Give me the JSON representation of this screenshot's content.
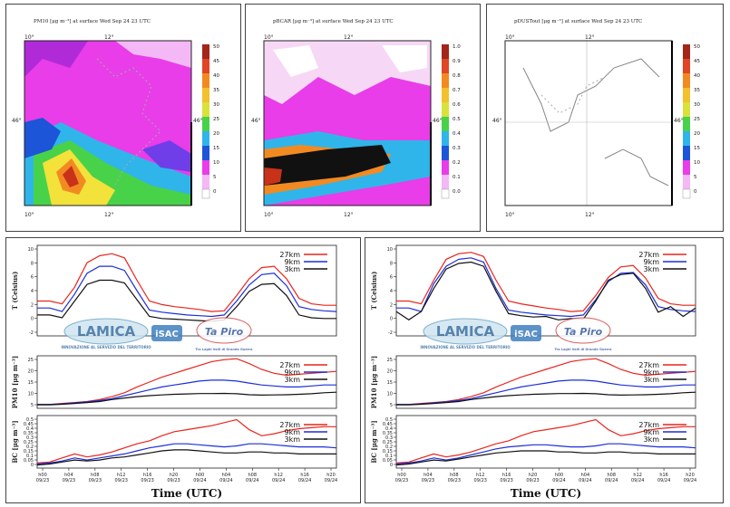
{
  "maps": [
    {
      "title": "PM10 [μg m⁻³] at surface Wed Sep 24 23 UTC",
      "colorbar_ticks": [
        "50",
        "45",
        "40",
        "35",
        "30",
        "25",
        "20",
        "15",
        "10",
        "5",
        "0"
      ]
    },
    {
      "title": "pBCAR [μg m⁻³] at surface Wed Sep 24 23 UTC",
      "colorbar_ticks": [
        "1.0",
        "0.9",
        "0.8",
        "0.7",
        "0.6",
        "0.5",
        "0.4",
        "0.3",
        "0.2",
        "0.1",
        "0.0"
      ]
    },
    {
      "title": "pDUSTout [μg m⁻³] at surface Wed Sep 24 23 UTC",
      "colorbar_ticks": [
        "50",
        "45",
        "40",
        "35",
        "30",
        "25",
        "20",
        "15",
        "10",
        "5",
        "0"
      ]
    }
  ],
  "map_axes": {
    "lon_top_left": "10°",
    "lon_top_mid": "12°",
    "lat_left": "46°",
    "lat_right": "46°",
    "lon_bottom_left": "10°",
    "lon_bottom_mid": "12°"
  },
  "colors": {
    "r27": "#e8251c",
    "r9": "#1c2fd8",
    "r3": "#111111"
  },
  "logos": {
    "lamica": "LAMICA",
    "isac": "iSAC",
    "tapiro": "Ta Piro",
    "tapiro_tag": "Tra Laghi Valli di Grande Guerra",
    "lamica_sub": "INNOVAZIONE AL SERVIZIO DEL TERRITORIO"
  },
  "chart_data": [
    {
      "type": "line",
      "panel": "left",
      "xlabel": "Time (UTC)",
      "x_ticks": [
        [
          "h00",
          "09/23"
        ],
        [
          "h04",
          "09/23"
        ],
        [
          "h08",
          "09/23"
        ],
        [
          "h12",
          "09/23"
        ],
        [
          "h16",
          "09/23"
        ],
        [
          "h20",
          "09/23"
        ],
        [
          "h00",
          "09/24"
        ],
        [
          "h04",
          "09/24"
        ],
        [
          "h08",
          "09/24"
        ],
        [
          "h12",
          "09/24"
        ],
        [
          "h16",
          "09/24"
        ],
        [
          "h20",
          "09/24"
        ]
      ],
      "x": [
        0,
        2,
        4,
        6,
        8,
        10,
        12,
        14,
        16,
        18,
        20,
        22,
        24,
        26,
        28,
        30,
        32,
        34,
        36,
        38,
        40,
        42,
        44,
        46,
        48
      ],
      "subplots": [
        {
          "ylabel": "T (Celsius)",
          "yticks": [
            "10",
            "8",
            "6",
            "4",
            "2",
            "0",
            "-2"
          ],
          "ylim": [
            -2,
            11
          ],
          "series": [
            {
              "name": "27km",
              "values": [
                3,
                3,
                2.6,
                5,
                8.5,
                9.5,
                9.8,
                9.2,
                6,
                3,
                2.5,
                2.2,
                2,
                1.8,
                1.5,
                1.6,
                3.8,
                6.2,
                7.8,
                8,
                6.2,
                3.4,
                2.6,
                2.4,
                2.4
              ]
            },
            {
              "name": "9km",
              "values": [
                2,
                2,
                1.5,
                4,
                7,
                8,
                8,
                7.4,
                4.5,
                1.7,
                1.4,
                1.2,
                1,
                0.9,
                0.8,
                1,
                3,
                5.3,
                6.8,
                7,
                5.2,
                2.2,
                1.8,
                1.6,
                1.5
              ]
            },
            {
              "name": "3km",
              "values": [
                1,
                1,
                0.6,
                3,
                5.4,
                6,
                6,
                5.6,
                3.2,
                0.8,
                0.5,
                0.4,
                0.3,
                0.2,
                0.1,
                0.3,
                2.2,
                4.4,
                5.4,
                5.5,
                3.8,
                1,
                0.6,
                0.5,
                0.5
              ]
            }
          ]
        },
        {
          "ylabel": "PM10 [μg m⁻³]",
          "yticks": [
            "25",
            "20",
            "15",
            "10",
            "5"
          ],
          "ylim": [
            0,
            27
          ],
          "series": [
            {
              "name": "27km",
              "values": [
                2,
                2,
                2.5,
                3,
                3.5,
                4.5,
                6,
                8,
                11,
                13.5,
                16,
                18,
                20,
                22,
                24,
                25,
                25.5,
                23,
                20,
                18,
                17,
                17.5,
                18,
                18.5,
                19
              ]
            },
            {
              "name": "9km",
              "values": [
                2,
                2,
                2.3,
                2.8,
                3.3,
                4,
                5,
                6.5,
                8,
                9.5,
                11,
                12,
                13,
                14,
                14.5,
                14.5,
                14,
                13,
                12,
                11.5,
                11,
                11,
                11.5,
                12,
                12
              ]
            },
            {
              "name": "3km",
              "values": [
                1.8,
                1.8,
                2.1,
                2.5,
                3,
                3.5,
                4.5,
                5.3,
                6,
                6.5,
                6.9,
                7.2,
                7.4,
                7.6,
                7.6,
                7.7,
                7.5,
                7,
                6.8,
                6.9,
                7,
                7.2,
                7.5,
                8,
                8.3
              ]
            }
          ]
        },
        {
          "ylabel": "BC [μg m⁻³]",
          "yticks": [
            "0.5",
            "0.45",
            "0.4",
            "0.35",
            "0.3",
            "0.25",
            "0.2",
            "0.15",
            "0.1",
            "0.05",
            "0"
          ],
          "ylim": [
            0,
            0.52
          ],
          "series": [
            {
              "name": "27km",
              "values": [
                0.05,
                0.06,
                0.1,
                0.14,
                0.11,
                0.13,
                0.16,
                0.2,
                0.24,
                0.27,
                0.32,
                0.36,
                0.38,
                0.4,
                0.42,
                0.45,
                0.48,
                0.38,
                0.32,
                0.34,
                0.37,
                0.39,
                0.4,
                0.41,
                0.41
              ]
            },
            {
              "name": "9km",
              "values": [
                0.04,
                0.05,
                0.07,
                0.1,
                0.08,
                0.1,
                0.12,
                0.14,
                0.17,
                0.2,
                0.22,
                0.24,
                0.24,
                0.23,
                0.22,
                0.21,
                0.22,
                0.24,
                0.24,
                0.23,
                0.22,
                0.21,
                0.21,
                0.21,
                0.2
              ]
            },
            {
              "name": "3km",
              "values": [
                0.03,
                0.04,
                0.06,
                0.08,
                0.07,
                0.08,
                0.1,
                0.11,
                0.13,
                0.15,
                0.17,
                0.18,
                0.18,
                0.17,
                0.16,
                0.15,
                0.15,
                0.16,
                0.16,
                0.15,
                0.15,
                0.14,
                0.14,
                0.14,
                0.14
              ]
            }
          ]
        }
      ]
    },
    {
      "type": "line",
      "panel": "right",
      "xlabel": "Time (UTC)",
      "x_ticks": [
        [
          "h00",
          "09/23"
        ],
        [
          "h04",
          "09/23"
        ],
        [
          "h08",
          "09/23"
        ],
        [
          "h12",
          "09/23"
        ],
        [
          "h16",
          "09/23"
        ],
        [
          "h20",
          "09/23"
        ],
        [
          "h00",
          "09/24"
        ],
        [
          "h04",
          "09/24"
        ],
        [
          "h08",
          "09/24"
        ],
        [
          "h12",
          "09/24"
        ],
        [
          "h16",
          "09/24"
        ],
        [
          "h20",
          "09/24"
        ]
      ],
      "x": [
        0,
        2,
        4,
        6,
        8,
        10,
        12,
        14,
        16,
        18,
        20,
        22,
        24,
        26,
        28,
        30,
        32,
        34,
        36,
        38,
        40,
        42,
        44,
        46,
        48
      ],
      "subplots": [
        {
          "ylabel": "T (Celsius)",
          "yticks": [
            "10",
            "8",
            "6",
            "4",
            "2",
            "0",
            "-2"
          ],
          "ylim": [
            -2,
            11
          ],
          "series": [
            {
              "name": "27km",
              "values": [
                3,
                3,
                2.6,
                6,
                9,
                9.8,
                10,
                9.4,
                6,
                3,
                2.6,
                2.3,
                2,
                1.8,
                1.5,
                1.6,
                3.8,
                6.4,
                7.9,
                8.1,
                6.3,
                3.4,
                2.6,
                2.4,
                2.4
              ]
            },
            {
              "name": "9km",
              "values": [
                2,
                2,
                1.5,
                5.5,
                8,
                9,
                9.2,
                8.6,
                4.8,
                1.7,
                1.4,
                1.2,
                1,
                0.9,
                0.8,
                1,
                3.2,
                5.8,
                7,
                7.1,
                5.3,
                2.2,
                1.8,
                1.6,
                1.5
              ]
            },
            {
              "name": "3km",
              "values": [
                1.5,
                0.3,
                1.5,
                4.8,
                7.6,
                8.4,
                8.6,
                8,
                4.4,
                1.2,
                0.9,
                0.7,
                0.8,
                0.3,
                0.5,
                0.4,
                3,
                6,
                6.8,
                7,
                4.8,
                1.4,
                2.2,
                0.8,
                2
              ]
            }
          ]
        },
        {
          "ylabel": "PM10 [μg m⁻³]",
          "yticks": [
            "25",
            "20",
            "15",
            "10",
            "5"
          ],
          "ylim": [
            0,
            27
          ],
          "series": [
            {
              "name": "27km",
              "values": [
                2,
                2,
                2.5,
                3,
                3.5,
                4.5,
                6,
                8,
                11,
                13.5,
                16,
                18,
                20,
                22,
                24,
                25,
                25.5,
                23,
                20,
                18,
                17,
                17.5,
                18,
                18.5,
                19
              ]
            },
            {
              "name": "9km",
              "values": [
                2,
                2,
                2.3,
                2.8,
                3.3,
                4,
                5,
                6.5,
                8,
                9.5,
                11,
                12,
                13,
                14,
                14.5,
                14.5,
                14,
                13,
                12,
                11.5,
                11,
                11,
                11.5,
                12,
                12
              ]
            },
            {
              "name": "3km",
              "values": [
                1.8,
                1.8,
                2.1,
                2.5,
                3,
                3.5,
                4.5,
                5.3,
                6,
                6.5,
                6.9,
                7.2,
                7.4,
                7.6,
                7.6,
                7.7,
                7.5,
                7,
                6.8,
                6.9,
                7,
                7.2,
                7.5,
                8,
                8.3
              ]
            }
          ]
        },
        {
          "ylabel": "BC [μg m⁻³]",
          "yticks": [
            "0.5",
            "0.45",
            "0.4",
            "0.35",
            "0.3",
            "0.25",
            "0.2",
            "0.15",
            "0.1",
            "0.05",
            "0"
          ],
          "ylim": [
            0,
            0.52
          ],
          "series": [
            {
              "name": "27km",
              "values": [
                0.05,
                0.06,
                0.1,
                0.14,
                0.11,
                0.13,
                0.16,
                0.2,
                0.24,
                0.27,
                0.32,
                0.36,
                0.38,
                0.4,
                0.42,
                0.45,
                0.48,
                0.38,
                0.32,
                0.34,
                0.37,
                0.39,
                0.4,
                0.41,
                0.41
              ]
            },
            {
              "name": "9km",
              "values": [
                0.04,
                0.05,
                0.07,
                0.1,
                0.08,
                0.1,
                0.13,
                0.16,
                0.19,
                0.21,
                0.22,
                0.23,
                0.23,
                0.22,
                0.21,
                0.21,
                0.22,
                0.24,
                0.24,
                0.23,
                0.22,
                0.21,
                0.21,
                0.21,
                0.2
              ]
            },
            {
              "name": "3km",
              "values": [
                0.03,
                0.04,
                0.06,
                0.08,
                0.07,
                0.09,
                0.11,
                0.13,
                0.15,
                0.16,
                0.17,
                0.17,
                0.17,
                0.16,
                0.16,
                0.15,
                0.15,
                0.16,
                0.16,
                0.15,
                0.15,
                0.14,
                0.14,
                0.14,
                0.14
              ]
            }
          ]
        }
      ]
    }
  ]
}
